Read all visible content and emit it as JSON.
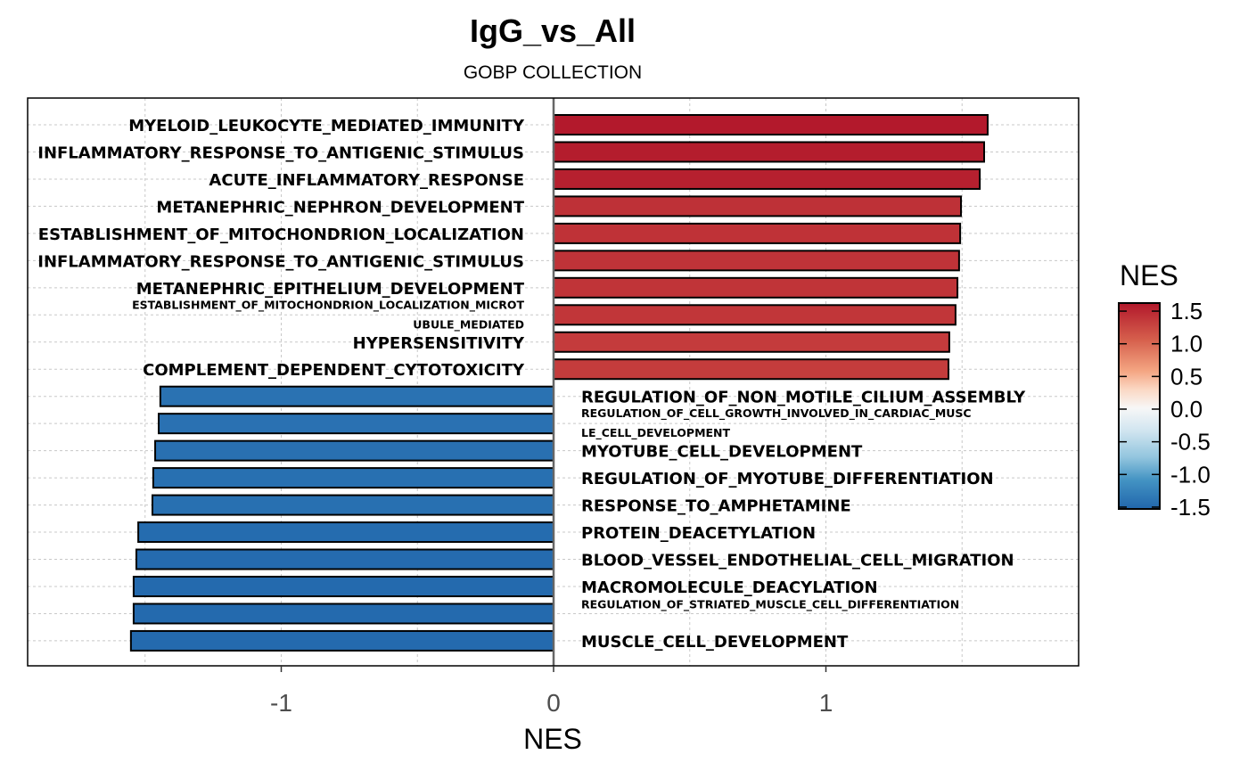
{
  "chart_data": {
    "type": "bar",
    "orientation": "horizontal",
    "title": "IgG_vs_All",
    "subtitle": "GOBP COLLECTION",
    "xlabel": "NES",
    "ylabel": "",
    "xlim": [
      -1.93,
      1.93
    ],
    "xticks": [
      -1,
      0,
      1
    ],
    "xtick_labels": [
      "-1",
      "0",
      "1"
    ],
    "grid": true,
    "bars": [
      {
        "label": "MYELOID_LEUKOCYTE_MEDIATED_IMMUNITY",
        "value": 1.594
      },
      {
        "label": "INFLAMMATORY_RESPONSE_TO_ANTIGENIC_STIMULUS",
        "value": 1.581
      },
      {
        "label": "ACUTE_INFLAMMATORY_RESPONSE",
        "value": 1.565
      },
      {
        "label": "METANEPHRIC_NEPHRON_DEVELOPMENT",
        "value": 1.496
      },
      {
        "label": "ESTABLISHMENT_OF_MITOCHONDRION_LOCALIZATION",
        "value": 1.493
      },
      {
        "label": "INFLAMMATORY_RESPONSE_TO_ANTIGENIC_STIMULUS",
        "value": 1.489
      },
      {
        "label": "METANEPHRIC_EPITHELIUM_DEVELOPMENT",
        "value": 1.483
      },
      {
        "label": "ESTABLISHMENT_OF_MITOCHONDRION_LOCALIZATION_MICROT",
        "label2": "UBULE_MEDIATED",
        "value": 1.476
      },
      {
        "label": "HYPERSENSITIVITY",
        "value": 1.453
      },
      {
        "label": "COMPLEMENT_DEPENDENT_CYTOTOXICITY",
        "value": 1.45
      },
      {
        "label": "REGULATION_OF_NON_MOTILE_CILIUM_ASSEMBLY",
        "value": -1.444
      },
      {
        "label": "REGULATION_OF_CELL_GROWTH_INVOLVED_IN_CARDIAC_MUSC",
        "label2": "LE_CELL_DEVELOPMENT",
        "value": -1.45
      },
      {
        "label": "MYOTUBE_CELL_DEVELOPMENT",
        "value": -1.463
      },
      {
        "label": "REGULATION_OF_MYOTUBE_DIFFERENTIATION",
        "value": -1.47
      },
      {
        "label": "RESPONSE_TO_AMPHETAMINE",
        "value": -1.473
      },
      {
        "label": "PROTEIN_DEACETYLATION",
        "value": -1.525
      },
      {
        "label": "BLOOD_VESSEL_ENDOTHELIAL_CELL_MIGRATION",
        "value": -1.532
      },
      {
        "label": "MACROMOLECULE_DEACYLATION",
        "value": -1.542
      },
      {
        "label": "REGULATION_OF_STRIATED_MUSCLE_CELL_DIFFERENTIATION",
        "value": -1.542,
        "small": true
      },
      {
        "label": "MUSCLE_CELL_DEVELOPMENT",
        "value": -1.552
      }
    ],
    "legend": {
      "title": "NES",
      "position": "right",
      "ticks": [
        1.5,
        1.0,
        0.5,
        0.0,
        -0.5,
        -1.0,
        -1.5
      ],
      "tick_labels": [
        "1.5",
        "1.0",
        "0.5",
        "0.0",
        "-0.5",
        "-1.0",
        "-1.5"
      ],
      "range": [
        -1.55,
        1.62
      ],
      "colors": {
        "low": "#2166ac",
        "mid": "#f7f7f7",
        "high": "#b2182b"
      }
    }
  }
}
